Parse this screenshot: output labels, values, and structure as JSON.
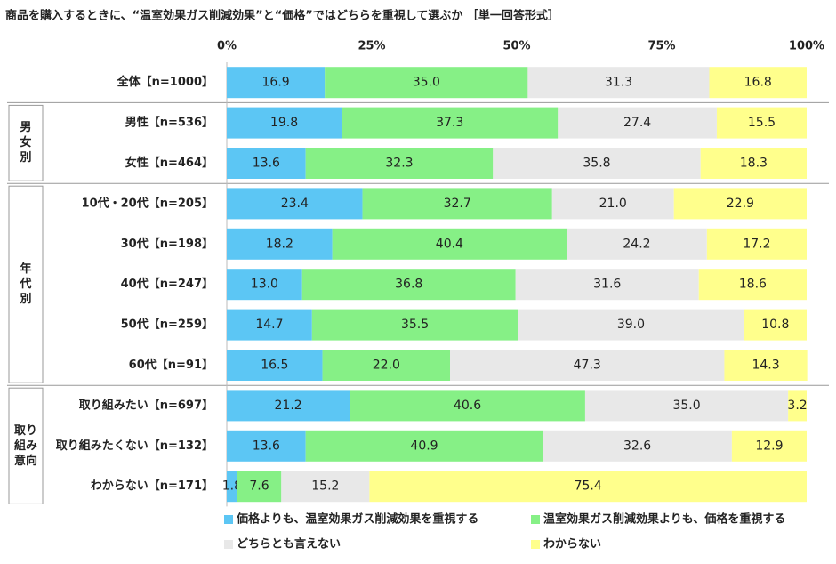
{
  "chart_data": {
    "type": "stacked-bar-horizontal",
    "title": "商品を購入するときに、“温室効果ガス削減効果”と“価格”ではどちらを重視して選ぶか ［単一回答形式］",
    "categories": [
      "全体【n=1000】",
      "男性【n=536】",
      "女性【n=464】",
      "10代・20代【n=205】",
      "30代【n=198】",
      "40代【n=247】",
      "50代【n=259】",
      "60代【n=91】",
      "取り組みたい【n=697】",
      "取り組みたくない【n=132】",
      "わからない【n=171】"
    ],
    "groups": [
      "男女別",
      "年代別",
      "取り組み意向"
    ],
    "series": [
      {
        "name": "価格よりも、温室効果ガス削減効果を重視する",
        "color": "#5cc6f4",
        "values": [
          16.9,
          19.8,
          13.6,
          23.4,
          18.2,
          13,
          14.7,
          16.5,
          21.2,
          13.6,
          1.8
        ],
        "value_labels": [
          "16.9",
          "19.8",
          "13.6",
          "23.4",
          "18.2",
          "13.0",
          "14.7",
          "16.5",
          "21.2",
          "13.6",
          "1.8"
        ]
      },
      {
        "name": "温室効果ガス削減効果よりも、価格を重視する",
        "color": "#86f086",
        "values": [
          35,
          37.3,
          32.3,
          32.7,
          40.4,
          36.8,
          35.5,
          22,
          40.6,
          40.9,
          7.6
        ],
        "value_labels": [
          "35.0",
          "37.3",
          "32.3",
          "32.7",
          "40.4",
          "36.8",
          "35.5",
          "22.0",
          "40.6",
          "40.9",
          "7.6"
        ]
      },
      {
        "name": "どちらとも言えない",
        "color": "#e8e8e8",
        "values": [
          31.3,
          27.4,
          35.8,
          21,
          24.2,
          31.6,
          39,
          47.3,
          35,
          32.6,
          15.2
        ],
        "value_labels": [
          "31.3",
          "27.4",
          "35.8",
          "21.0",
          "24.2",
          "31.6",
          "39.0",
          "47.3",
          "35.0",
          "32.6",
          "15.2"
        ]
      },
      {
        "name": "わからない",
        "color": "#ffff8c",
        "values": [
          16.8,
          15.5,
          18.3,
          22.9,
          17.2,
          18.6,
          10.8,
          14.3,
          3.2,
          12.9,
          75.4
        ],
        "value_labels": [
          "16.8",
          "15.5",
          "18.3",
          "22.9",
          "17.2",
          "18.6",
          "10.8",
          "14.3",
          "3.2",
          "12.9",
          "75.4"
        ]
      }
    ],
    "xlim": [
      0,
      100
    ],
    "xticks": [
      {
        "value": 0,
        "label": "0%"
      },
      {
        "value": 25,
        "label": "25%"
      },
      {
        "value": 50,
        "label": "50%"
      },
      {
        "value": 75,
        "label": "75%"
      },
      {
        "value": 100,
        "label": "100%"
      }
    ]
  }
}
